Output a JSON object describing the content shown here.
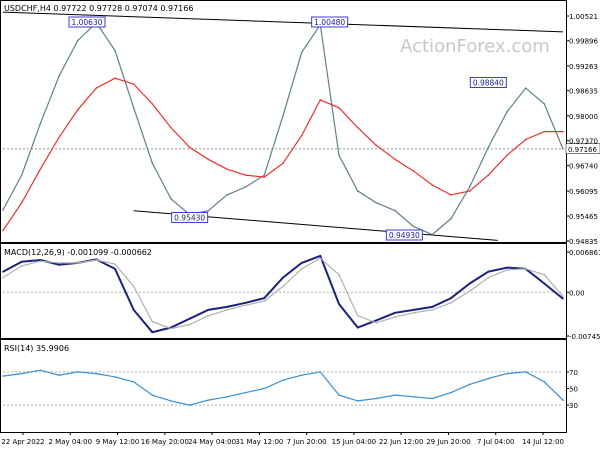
{
  "chart_data": [
    {
      "panel": "price",
      "type": "line",
      "title": "USDCHF,H4  0.97722 0.97728 0.97074 0.97166",
      "watermark": "ActionForex.com",
      "ylim": [
        0.94835,
        1.00521
      ],
      "yticks": [
        "1.00521",
        "0.99896",
        "0.99263",
        "0.98635",
        "0.98000",
        "0.97370",
        "0.96740",
        "0.96095",
        "0.95465",
        "0.94835"
      ],
      "current_price_label": "0.97166",
      "x": [
        0,
        2,
        4,
        6,
        8,
        10,
        12,
        14,
        16,
        18,
        20,
        22,
        24,
        26,
        28,
        30,
        32,
        34,
        36,
        38,
        40,
        42,
        44,
        46,
        48,
        50,
        52,
        54,
        56,
        58,
        60
      ],
      "series": [
        {
          "name": "",
          "color": "#5f7f8f",
          "values": [
            0.9562,
            0.965,
            0.978,
            0.99,
            0.999,
            1.0035,
            0.9965,
            0.982,
            0.968,
            0.959,
            0.955,
            0.956,
            0.96,
            0.962,
            0.965,
            0.98,
            0.996,
            1.003,
            0.97,
            0.961,
            0.958,
            0.956,
            0.952,
            0.95,
            0.954,
            0.962,
            0.972,
            0.981,
            0.987,
            0.983,
            0.9716
          ]
        },
        {
          "name": "",
          "color": "#e8322e",
          "values": [
            0.951,
            0.958,
            0.9665,
            0.9745,
            0.9815,
            0.987,
            0.9895,
            0.988,
            0.983,
            0.977,
            0.972,
            0.969,
            0.9665,
            0.965,
            0.9645,
            0.968,
            0.975,
            0.984,
            0.982,
            0.977,
            0.9725,
            0.969,
            0.966,
            0.9625,
            0.96,
            0.961,
            0.965,
            0.97,
            0.974,
            0.976,
            0.976
          ]
        }
      ],
      "annotations": [
        {
          "text": "1.00630",
          "x": 9,
          "y": 1.0063
        },
        {
          "text": "1.00480",
          "x": 35,
          "y": 1.0048
        },
        {
          "text": "0.95430",
          "x": 20,
          "y": 0.9543
        },
        {
          "text": "0.94930",
          "x": 43,
          "y": 0.9493
        },
        {
          "text": "0.98840",
          "x": 52,
          "y": 0.9884
        }
      ]
    },
    {
      "panel": "macd",
      "type": "line",
      "title": "MACD(12,26,9) -0.001099 -0.000662",
      "ylim": [
        -0.007454,
        0.006861
      ],
      "yticks": [
        "0.006861",
        "0.00",
        "-0.007454"
      ],
      "x": [
        0,
        2,
        4,
        6,
        8,
        10,
        12,
        14,
        16,
        18,
        20,
        22,
        24,
        26,
        28,
        30,
        32,
        34,
        36,
        38,
        40,
        42,
        44,
        46,
        48,
        50,
        52,
        54,
        56,
        58,
        60
      ],
      "series": [
        {
          "name": "",
          "color": "#1a237e",
          "values": [
            0.0035,
            0.0052,
            0.0055,
            0.0047,
            0.005,
            0.0056,
            0.004,
            -0.003,
            -0.0068,
            -0.006,
            -0.0045,
            -0.003,
            -0.0025,
            -0.0018,
            -0.001,
            0.0025,
            0.005,
            0.0062,
            -0.002,
            -0.006,
            -0.0048,
            -0.0035,
            -0.003,
            -0.0025,
            -0.001,
            0.0015,
            0.0035,
            0.0042,
            0.004,
            0.0015,
            -0.0011
          ]
        },
        {
          "name": "",
          "color": "#b0b0b0",
          "values": [
            0.0025,
            0.0045,
            0.0053,
            0.005,
            0.005,
            0.0055,
            0.0048,
            0.001,
            -0.005,
            -0.0062,
            -0.0055,
            -0.004,
            -0.003,
            -0.0022,
            -0.0015,
            0.001,
            0.004,
            0.0058,
            0.003,
            -0.004,
            -0.0052,
            -0.0042,
            -0.0035,
            -0.003,
            -0.0018,
            0.0002,
            0.0025,
            0.0038,
            0.004,
            0.003,
            -0.0007
          ]
        }
      ]
    },
    {
      "panel": "rsi",
      "type": "line",
      "title": "RSI(14) 35.9906",
      "ylim": [
        0,
        100
      ],
      "yticks": [
        "70",
        "50",
        "30"
      ],
      "x": [
        0,
        2,
        4,
        6,
        8,
        10,
        12,
        14,
        16,
        18,
        20,
        22,
        24,
        26,
        28,
        30,
        32,
        34,
        36,
        38,
        40,
        42,
        44,
        46,
        48,
        50,
        52,
        54,
        56,
        58,
        60
      ],
      "xticks": [
        "22 Apr 2022",
        "2 May 04:00",
        "9 May 12:00",
        "16 May 20:00",
        "24 May 04:00",
        "31 May 12:00",
        "7 Jun 20:00",
        "15 Jun 04:00",
        "22 Jun 12:00",
        "29 Jun 20:00",
        "7 Jul 04:00",
        "14 Jul 12:00"
      ],
      "series": [
        {
          "name": "",
          "color": "#3b8fd6",
          "values": [
            65,
            68,
            72,
            66,
            70,
            68,
            64,
            58,
            42,
            35,
            30,
            36,
            40,
            45,
            50,
            60,
            66,
            70,
            42,
            35,
            38,
            42,
            40,
            38,
            45,
            55,
            62,
            68,
            70,
            58,
            36
          ]
        }
      ]
    }
  ]
}
